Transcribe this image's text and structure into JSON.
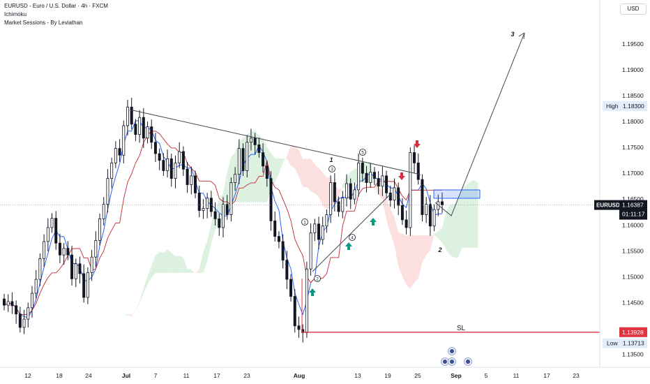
{
  "header": {
    "symbol_line": "EURUSD - Euro / U.S. Dollar · 4h · FXCM",
    "indicator_1": "Ichimoku",
    "indicator_2": "Market Sessions - By Leviathan"
  },
  "currency_button": "USD",
  "colors": {
    "candle": "#131722",
    "price_line": "#2962ff",
    "base_line": "#c2262e",
    "cloud_green": "#d7efdc",
    "cloud_red": "#fbd9d9",
    "trendline": "#434651",
    "sl_line": "#e03340",
    "arrow_green": "#089981",
    "arrow_red": "#d32f3f",
    "resistance_box": "#2962ff",
    "sl_label_bg": "#e03340",
    "price_label_bg": "#131722",
    "high_low_label_bg": "#e3ecfb"
  },
  "chart_data": {
    "type": "candlestick",
    "symbol": "EURUSD",
    "timeframe": "4h",
    "x_tick_labels": [
      "12",
      "18",
      "24",
      "Jul",
      "7",
      "11",
      "17",
      "23",
      "Aug",
      "13",
      "19",
      "25",
      "Sep",
      "5",
      "11",
      "17",
      "23"
    ],
    "y_tick_labels": [
      "1.19500",
      "1.19000",
      "1.18500",
      "1.18000",
      "1.17500",
      "1.17000",
      "1.16500",
      "1.16000",
      "1.15500",
      "1.15000",
      "1.14500",
      "1.13500"
    ],
    "ylim": [
      1.1325,
      1.2035
    ],
    "current_price": {
      "value": "1.16387",
      "symbol": "EURUSD",
      "countdown": "01:11:17"
    },
    "high": {
      "label": "High",
      "value": "1.18300"
    },
    "low": {
      "label": "Low",
      "value": "1.13713"
    },
    "stop_loss": {
      "label": "SL",
      "value": "1.13928"
    },
    "wave_labels": [
      "1",
      "2",
      "3",
      "4",
      "5"
    ],
    "projection_labels": [
      "1",
      "2",
      "3"
    ],
    "close_series": [
      1.1445,
      1.1452,
      1.1444,
      1.1428,
      1.1402,
      1.1418,
      1.144,
      1.1468,
      1.1495,
      1.1535,
      1.1568,
      1.1595,
      1.1613,
      1.1565,
      1.1542,
      1.1555,
      1.1542,
      1.1496,
      1.1525,
      1.1506,
      1.146,
      1.1508,
      1.1538,
      1.157,
      1.1612,
      1.164,
      1.169,
      1.172,
      1.1748,
      1.1735,
      1.1792,
      1.1828,
      1.1795,
      1.1775,
      1.1808,
      1.1768,
      1.179,
      1.176,
      1.1738,
      1.1725,
      1.1705,
      1.1728,
      1.169,
      1.172,
      1.1742,
      1.1708,
      1.1678,
      1.1695,
      1.1662,
      1.1628,
      1.1632,
      1.1652,
      1.1626,
      1.1612,
      1.1595,
      1.164,
      1.162,
      1.1682,
      1.1698,
      1.1748,
      1.1705,
      1.176,
      1.1768,
      1.1755,
      1.174,
      1.1714,
      1.169,
      1.1608,
      1.1578,
      1.1568,
      1.1532,
      1.1495,
      1.1462,
      1.1405,
      1.1398,
      1.1392,
      1.1515,
      1.1585,
      1.1602,
      1.1572,
      1.1598,
      1.162,
      1.1682,
      1.1645,
      1.1626,
      1.1652,
      1.168,
      1.165,
      1.1668,
      1.172,
      1.17,
      1.1682,
      1.1702,
      1.169,
      1.1675,
      1.1695,
      1.1662,
      1.1648,
      1.1672,
      1.1638,
      1.161,
      1.1595,
      1.174,
      1.172,
      1.1688,
      1.162,
      1.164,
      1.1598,
      1.163,
      1.1645,
      1.1639
    ],
    "grid": false,
    "legend": "top-left"
  }
}
